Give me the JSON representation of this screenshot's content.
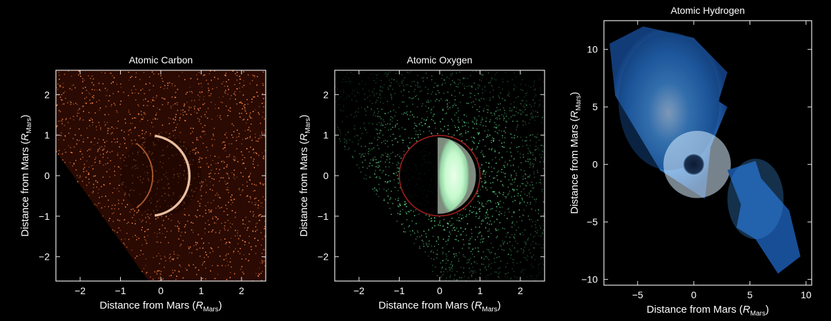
{
  "figure": {
    "background": "#000000",
    "axis_color": "#e8e8e8",
    "text_color": "#ffffff"
  },
  "chart_data": [
    {
      "type": "heatmap",
      "title": "Atomic Carbon",
      "xlabel": {
        "main": "Distance from Mars (",
        "sym": "R",
        "sub": "Mars",
        "close": ")"
      },
      "ylabel": {
        "main": "Distance from Mars (",
        "sym": "R",
        "sub": "Mars",
        "close": ")"
      },
      "xlim": [
        -2.6,
        2.6
      ],
      "ylim": [
        -2.6,
        2.6
      ],
      "xticks": [
        -2,
        -1,
        0,
        1,
        2
      ],
      "yticks": [
        -2,
        -1,
        0,
        1,
        2
      ],
      "xtick_labels": [
        "−2",
        "−1",
        "0",
        "1",
        "2"
      ],
      "ytick_labels": [
        "−2",
        "−1",
        "0",
        "1",
        "2"
      ],
      "grid": false,
      "colormap": "black-to-orange",
      "colors": {
        "emission": "#ff8a4a",
        "limb": "#ffd2b0",
        "region": "#2a0a02"
      },
      "planet_disk": {
        "center": [
          0,
          0
        ],
        "radius": 1
      },
      "bright_limb": "dayside (positive x), crescent",
      "observed_region": "wedge opening toward positive x; dark corner at lower left"
    },
    {
      "type": "heatmap",
      "title": "Atomic Oxygen",
      "xlabel": {
        "main": "Distance from Mars (",
        "sym": "R",
        "sub": "Mars",
        "close": ")"
      },
      "ylabel": {
        "main": "Distance from Mars (",
        "sym": "R",
        "sub": "Mars",
        "close": ")"
      },
      "xlim": [
        -2.6,
        2.6
      ],
      "ylim": [
        -2.6,
        2.6
      ],
      "xticks": [
        -2,
        -1,
        0,
        1,
        2
      ],
      "yticks": [
        -2,
        -1,
        0,
        1,
        2
      ],
      "xtick_labels": [
        "−2",
        "−1",
        "0",
        "1",
        "2"
      ],
      "ytick_labels": [
        "−2",
        "−1",
        "0",
        "1",
        "2"
      ],
      "grid": false,
      "colormap": "black-to-green",
      "colors": {
        "emission": "#5fdc8a",
        "core": "#e6ffe6",
        "outline": "#b02020"
      },
      "planet_disk": {
        "center": [
          0,
          0
        ],
        "radius": 1
      },
      "bright_limb": "dayside half disk (x > -0.1)",
      "disk_outline": "red circle"
    },
    {
      "type": "heatmap",
      "title": "Atomic Hydrogen",
      "xlabel": {
        "main": "Distance from Mars (",
        "sym": "R",
        "sub": "Mars",
        "close": ")"
      },
      "ylabel": {
        "main": "Distance from Mars (",
        "sym": "R",
        "sub": "Mars",
        "close": ")"
      },
      "xlim": [
        -8,
        10.5
      ],
      "ylim": [
        -10.5,
        12.5
      ],
      "xticks": [
        -5,
        0,
        5,
        10
      ],
      "yticks": [
        -10,
        -5,
        0,
        5,
        10
      ],
      "xtick_labels": [
        "−5",
        "0",
        "5",
        "10"
      ],
      "ytick_labels": [
        "−10",
        "−5",
        "0",
        "5",
        "10"
      ],
      "grid": false,
      "colormap": "black-blue-white",
      "colors": {
        "outer": "#174e96",
        "mid": "#3a8ad6",
        "inner": "#c8e8ff"
      },
      "planet_disk": {
        "center": [
          0,
          0
        ],
        "radius": 1
      },
      "corona_regions": "upper-left elongated region and lower-right elongated region"
    }
  ]
}
